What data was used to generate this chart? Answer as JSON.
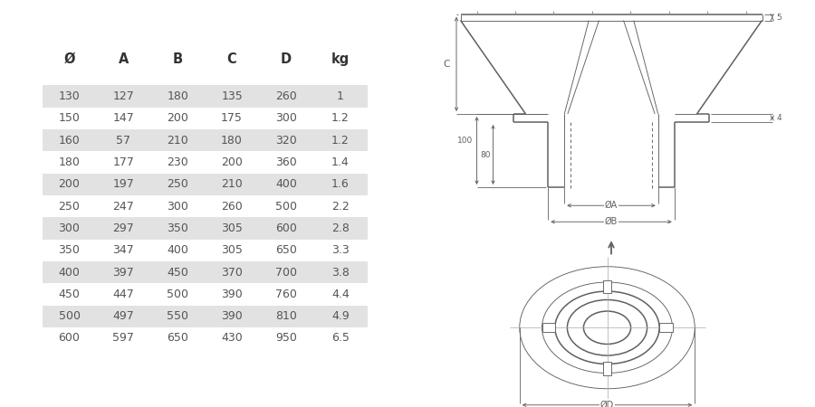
{
  "headers": [
    "Ø",
    "A",
    "B",
    "C",
    "D",
    "kg"
  ],
  "rows": [
    [
      130,
      127,
      180,
      135,
      260,
      1
    ],
    [
      150,
      147,
      200,
      175,
      300,
      1.2
    ],
    [
      160,
      57,
      210,
      180,
      320,
      1.2
    ],
    [
      180,
      177,
      230,
      200,
      360,
      1.4
    ],
    [
      200,
      197,
      250,
      210,
      400,
      1.6
    ],
    [
      250,
      247,
      300,
      260,
      500,
      2.2
    ],
    [
      300,
      297,
      350,
      305,
      600,
      2.8
    ],
    [
      350,
      347,
      400,
      305,
      650,
      3.3
    ],
    [
      400,
      397,
      450,
      370,
      700,
      3.8
    ],
    [
      450,
      447,
      500,
      390,
      760,
      4.4
    ],
    [
      500,
      497,
      550,
      390,
      810,
      4.9
    ],
    [
      600,
      597,
      650,
      430,
      950,
      6.5
    ]
  ],
  "shaded_rows": [
    0,
    2,
    4,
    6,
    8,
    10
  ],
  "row_bg_shaded": "#e2e2e2",
  "row_bg_white": "#ffffff",
  "text_color": "#555555",
  "header_color": "#333333",
  "bg_color": "#ffffff",
  "line_color": "#606060",
  "dim_color": "#606060"
}
